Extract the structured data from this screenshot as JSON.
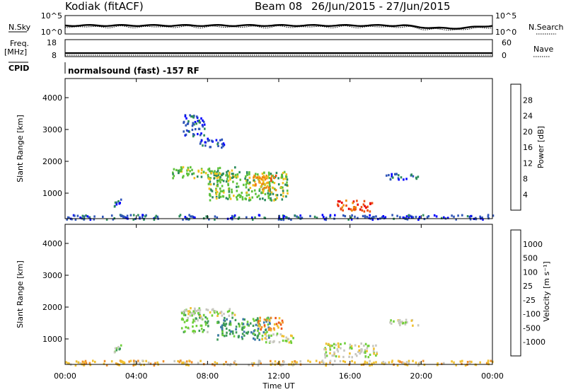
{
  "header": {
    "station": "Kodiak (fitACF)",
    "beam": "Beam 08",
    "dates": "26/Jun/2015 - 27/Jun/2015"
  },
  "top_panels": {
    "nsky_label": "N.Sky",
    "nsearch_label": "N.Search",
    "nsky_ticks": [
      "10^5",
      "10^0"
    ],
    "nsearch_ticks": [
      "10^5",
      "10^0"
    ],
    "freq_label_line1": "Freq.",
    "freq_label_line2": "[MHz]",
    "freq_ticks": [
      "18",
      "8"
    ],
    "nave_label": "Nave",
    "nave_ticks": [
      "60",
      "0"
    ],
    "cpid_label": "CPID",
    "cpid_text": "normalsound (fast) -157 RF"
  },
  "chart_data": [
    {
      "type": "heatmap",
      "name": "power",
      "ylabel": "Slant Range [km]",
      "ylim": [
        200,
        4600
      ],
      "yticks": [
        "1000",
        "2000",
        "3000",
        "4000"
      ],
      "colorbar_label": "Power [dB]",
      "colorbar_ticks": [
        "4",
        "8",
        "12",
        "16",
        "20",
        "24",
        "28"
      ],
      "colorbar_colors": [
        "#0000ff",
        "#2f55b8",
        "#2c8c5b",
        "#5ec23a",
        "#f0c020",
        "#f08a10",
        "#ee5010",
        "#e80000"
      ],
      "regions": [
        {
          "t_start": 2.7,
          "t_end": 3.3,
          "r_start": 600,
          "r_end": 850,
          "level": 1
        },
        {
          "t_start": 6.6,
          "t_end": 7.8,
          "r_start": 2800,
          "r_end": 3500,
          "level": 1
        },
        {
          "t_start": 7.5,
          "t_end": 8.9,
          "r_start": 2450,
          "r_end": 2750,
          "level": 1
        },
        {
          "t_start": 6.0,
          "t_end": 9.5,
          "r_start": 1500,
          "r_end": 1850,
          "level": 3
        },
        {
          "t_start": 8.0,
          "t_end": 12.5,
          "r_start": 800,
          "r_end": 1700,
          "level": 3
        },
        {
          "t_start": 10.5,
          "t_end": 11.8,
          "r_start": 1100,
          "r_end": 1600,
          "level": 5
        },
        {
          "t_start": 15.2,
          "t_end": 17.2,
          "r_start": 450,
          "r_end": 800,
          "level": 6
        },
        {
          "t_start": 18.0,
          "t_end": 19.8,
          "r_start": 1450,
          "r_end": 1650,
          "level": 1
        },
        {
          "t_start": 0.0,
          "t_end": 24.0,
          "r_start": 200,
          "r_end": 350,
          "level": 1
        }
      ]
    },
    {
      "type": "heatmap",
      "name": "velocity",
      "ylabel": "Slant Range [km]",
      "xlabel": "Time UT",
      "ylim": [
        200,
        4600
      ],
      "yticks": [
        "1000",
        "2000",
        "3000",
        "4000"
      ],
      "xticks": [
        "00:00",
        "04:00",
        "08:00",
        "12:00",
        "16:00",
        "20:00",
        "00:00"
      ],
      "colorbar_label": "Velocity [m s⁻¹]",
      "colorbar_ticks": [
        "1000",
        "500",
        "100",
        "25",
        "-25",
        "-100",
        "-500",
        "-1000"
      ],
      "colorbar_colors": [
        "#1f3fc8",
        "#3a78a8",
        "#3f9c58",
        "#6fcf3a",
        "#c8c8c0",
        "#f0c030",
        "#f0902a",
        "#ee5518",
        "#e60000"
      ],
      "regions": [
        {
          "t_start": 2.7,
          "t_end": 3.3,
          "r_start": 600,
          "r_end": 850,
          "level": 3
        },
        {
          "t_start": 6.5,
          "t_end": 8.0,
          "r_start": 1200,
          "r_end": 1900,
          "level": 3
        },
        {
          "t_start": 6.5,
          "t_end": 9.5,
          "r_start": 1750,
          "r_end": 2000,
          "level": 4
        },
        {
          "t_start": 8.5,
          "t_end": 11.5,
          "r_start": 1000,
          "r_end": 1700,
          "level": 2
        },
        {
          "t_start": 10.8,
          "t_end": 12.2,
          "r_start": 1300,
          "r_end": 1700,
          "level": 6
        },
        {
          "t_start": 11.0,
          "t_end": 12.8,
          "r_start": 900,
          "r_end": 1200,
          "level": 4
        },
        {
          "t_start": 14.5,
          "t_end": 17.5,
          "r_start": 450,
          "r_end": 900,
          "level": 4
        },
        {
          "t_start": 18.0,
          "t_end": 19.8,
          "r_start": 1450,
          "r_end": 1650,
          "level": 4
        },
        {
          "t_start": 0.0,
          "t_end": 24.0,
          "r_start": 200,
          "r_end": 350,
          "level": 5
        }
      ]
    }
  ]
}
